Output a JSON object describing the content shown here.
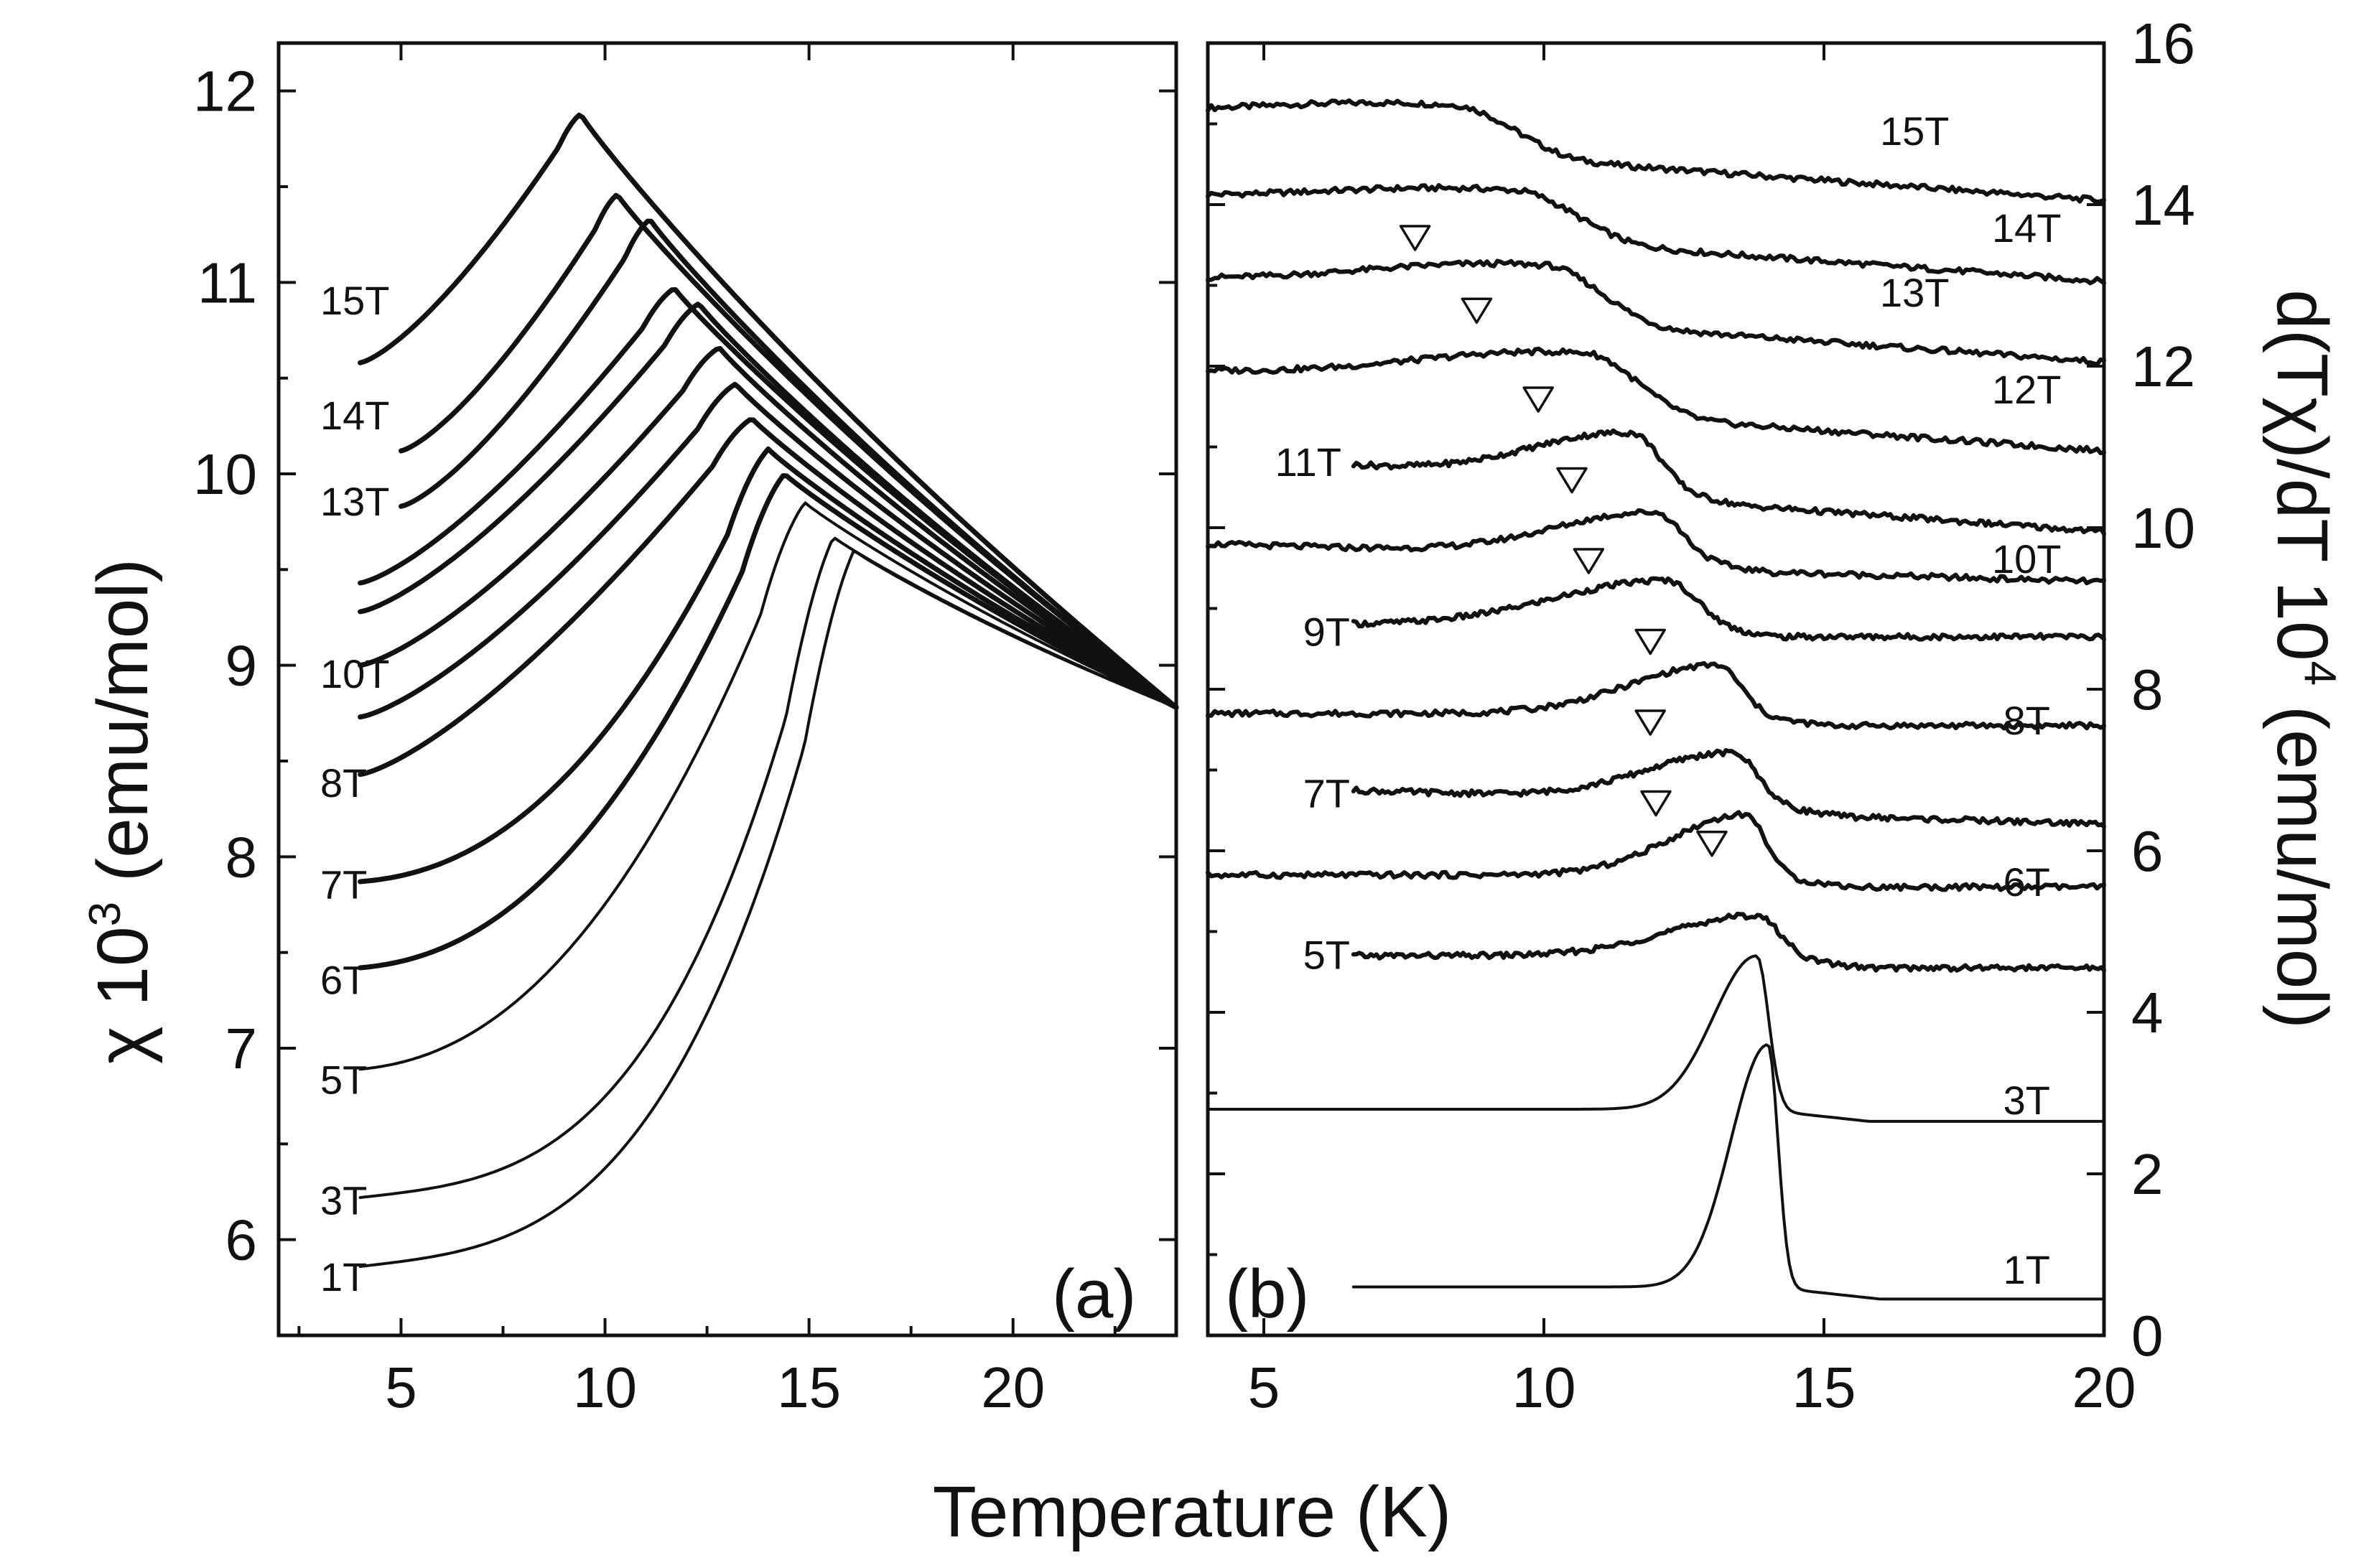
{
  "figure": {
    "xlabel": "Temperature (K)"
  },
  "chart_data": [
    {
      "type": "line",
      "panel_label": "(a)",
      "ylabel": "χ 10",
      "ylabel_sup": "3",
      "ylabel_unit": " (emu/mol)",
      "xlim": [
        2,
        24
      ],
      "ylim": [
        5.5,
        12.25
      ],
      "x_tick_labels": [
        "5",
        "10",
        "15",
        "20"
      ],
      "x_ticks": [
        5,
        10,
        15,
        20
      ],
      "y_tick_labels": [
        "6",
        "7",
        "8",
        "9",
        "10",
        "11",
        "12"
      ],
      "y_ticks": [
        6,
        7,
        8,
        9,
        10,
        11,
        12
      ],
      "series": [
        {
          "name": "15T",
          "tc": 9.4,
          "t0": 4.0,
          "y0": 10.58,
          "ypk": 11.88,
          "yend": 8.78
        },
        {
          "name": "14T",
          "tc": 10.3,
          "t0": 5.0,
          "y0": 10.12,
          "ypk": 11.46,
          "yend": 8.78
        },
        {
          "name": "13T",
          "tc": 11.1,
          "t0": 5.0,
          "y0": 9.83,
          "ypk": 11.33,
          "yend": 8.78
        },
        {
          "name": "12T",
          "tc": 11.7,
          "t0": 4.0,
          "y0": 9.43,
          "ypk": 10.97,
          "yend": 8.78
        },
        {
          "name": "11T",
          "tc": 12.3,
          "t0": 4.0,
          "y0": 9.28,
          "ypk": 10.89,
          "yend": 8.78
        },
        {
          "name": "10T",
          "tc": 12.8,
          "t0": 4.0,
          "y0": 9.0,
          "ypk": 10.66,
          "yend": 8.78
        },
        {
          "name": "9T",
          "tc": 13.2,
          "t0": 4.0,
          "y0": 8.73,
          "ypk": 10.47,
          "yend": 8.78
        },
        {
          "name": "8T",
          "tc": 13.6,
          "t0": 4.0,
          "y0": 8.43,
          "ypk": 10.29,
          "yend": 8.78
        },
        {
          "name": "7T",
          "tc": 14.0,
          "t0": 4.0,
          "y0": 7.87,
          "ypk": 10.13,
          "yend": 8.78
        },
        {
          "name": "6T",
          "tc": 14.4,
          "t0": 4.0,
          "y0": 7.42,
          "ypk": 10.0,
          "yend": 8.78
        },
        {
          "name": "5T",
          "tc": 14.9,
          "t0": 4.0,
          "y0": 6.89,
          "ypk": 9.85,
          "yend": 8.78
        },
        {
          "name": "3T",
          "tc": 15.6,
          "t0": 4.0,
          "y0": 6.22,
          "ypk": 9.67,
          "yend": 8.78
        },
        {
          "name": "1T",
          "tc": 16.1,
          "t0": 4.0,
          "y0": 5.86,
          "ypk": 9.6,
          "yend": 8.78
        }
      ],
      "curve_labels": [
        {
          "text": "15T",
          "x": 3.9,
          "y": 10.9
        },
        {
          "text": "14T",
          "x": 3.9,
          "y": 10.3
        },
        {
          "text": "13T",
          "x": 3.9,
          "y": 9.85
        },
        {
          "text": "10T",
          "x": 3.9,
          "y": 8.95
        },
        {
          "text": "8T",
          "x": 3.9,
          "y": 8.38
        },
        {
          "text": "7T",
          "x": 3.9,
          "y": 7.85
        },
        {
          "text": "6T",
          "x": 3.9,
          "y": 7.35
        },
        {
          "text": "5T",
          "x": 3.9,
          "y": 6.83
        },
        {
          "text": "3T",
          "x": 3.9,
          "y": 6.2
        },
        {
          "text": "1T",
          "x": 3.9,
          "y": 5.8
        }
      ]
    },
    {
      "type": "line",
      "panel_label": "(b)",
      "ylabel": "d(Tχ)/dT 10",
      "ylabel_sup": "4",
      "ylabel_unit": " (emu/mol)",
      "xlim": [
        4,
        20
      ],
      "ylim": [
        0,
        16
      ],
      "x_tick_labels": [
        "5",
        "10",
        "15",
        "20"
      ],
      "x_ticks": [
        5,
        10,
        15,
        20
      ],
      "y_tick_labels": [
        "0",
        "2",
        "4",
        "6",
        "8",
        "10",
        "12",
        "14",
        "16"
      ],
      "y_ticks": [
        0,
        2,
        4,
        6,
        8,
        10,
        12,
        14,
        16
      ],
      "series": [
        {
          "name": "15T",
          "base": 15.0,
          "tstart": 4.0,
          "tpk": 8.5,
          "amp": 0.45,
          "slope": -0.05,
          "width": 1.6
        },
        {
          "name": "14T",
          "base": 14.0,
          "tstart": 4.0,
          "tpk": 9.6,
          "amp": 0.45,
          "slope": -0.05,
          "width": 1.6
        },
        {
          "name": "13T",
          "base": 13.0,
          "tstart": 4.0,
          "tpk": 10.1,
          "amp": 0.55,
          "slope": -0.05,
          "width": 1.5
        },
        {
          "name": "12T",
          "base": 11.9,
          "tstart": 4.0,
          "tpk": 10.8,
          "amp": 0.6,
          "slope": -0.05,
          "width": 1.4
        },
        {
          "name": "11T",
          "base": 10.9,
          "tstart": 6.6,
          "tpk": 11.6,
          "amp": 0.65,
          "slope": -0.05,
          "width": 0.8
        },
        {
          "name": "10T",
          "base": 9.8,
          "tstart": 4.0,
          "tpk": 12.0,
          "amp": 0.55,
          "slope": -0.02,
          "width": 0.8
        },
        {
          "name": "9T",
          "base": 8.8,
          "tstart": 6.6,
          "tpk": 12.2,
          "amp": 0.55,
          "slope": 0.0,
          "width": 0.9
        },
        {
          "name": "8T",
          "base": 7.7,
          "tstart": 4.0,
          "tpk": 13.1,
          "amp": 0.6,
          "slope": 0.0,
          "width": 0.7
        },
        {
          "name": "7T",
          "base": 6.8,
          "tstart": 6.6,
          "tpk": 13.4,
          "amp": 0.6,
          "slope": -0.02,
          "width": 0.7
        },
        {
          "name": "6T",
          "base": 5.7,
          "tstart": 4.0,
          "tpk": 13.6,
          "amp": 0.75,
          "slope": 0.0,
          "width": 0.6
        },
        {
          "name": "5T",
          "base": 4.7,
          "tstart": 6.6,
          "tpk": 13.8,
          "amp": 0.5,
          "slope": 0.0,
          "width": 0.7
        },
        {
          "name": "3T",
          "base": 2.8,
          "tstart": 4.0,
          "tpk": 13.8,
          "amp": 1.9,
          "slope": 0.0,
          "width": 0.35
        },
        {
          "name": "1T",
          "base": 0.6,
          "tstart": 6.6,
          "tpk": 14.0,
          "amp": 3.0,
          "slope": 0.0,
          "width": 0.3
        }
      ],
      "curve_labels": [
        {
          "text": "15T",
          "x": 16.0,
          "y": 14.9
        },
        {
          "text": "14T",
          "x": 18.0,
          "y": 13.7
        },
        {
          "text": "13T",
          "x": 16.0,
          "y": 12.9
        },
        {
          "text": "12T",
          "x": 18.0,
          "y": 11.7
        },
        {
          "text": "11T",
          "x": 5.2,
          "y": 10.8
        },
        {
          "text": "10T",
          "x": 18.0,
          "y": 9.6
        },
        {
          "text": "9T",
          "x": 5.7,
          "y": 8.7
        },
        {
          "text": "8T",
          "x": 18.2,
          "y": 7.6
        },
        {
          "text": "7T",
          "x": 5.7,
          "y": 6.7
        },
        {
          "text": "6T",
          "x": 18.2,
          "y": 5.6
        },
        {
          "text": "5T",
          "x": 5.7,
          "y": 4.7
        },
        {
          "text": "3T",
          "x": 18.2,
          "y": 2.9
        },
        {
          "text": "1T",
          "x": 18.2,
          "y": 0.8
        }
      ],
      "transition_markers": [
        {
          "x": 7.7,
          "y": 13.6
        },
        {
          "x": 8.8,
          "y": 12.7
        },
        {
          "x": 9.9,
          "y": 11.6
        },
        {
          "x": 10.5,
          "y": 10.6
        },
        {
          "x": 10.8,
          "y": 9.6
        },
        {
          "x": 11.9,
          "y": 8.6
        },
        {
          "x": 11.9,
          "y": 7.6
        },
        {
          "x": 12.0,
          "y": 6.6
        },
        {
          "x": 13.0,
          "y": 6.1
        }
      ]
    }
  ]
}
